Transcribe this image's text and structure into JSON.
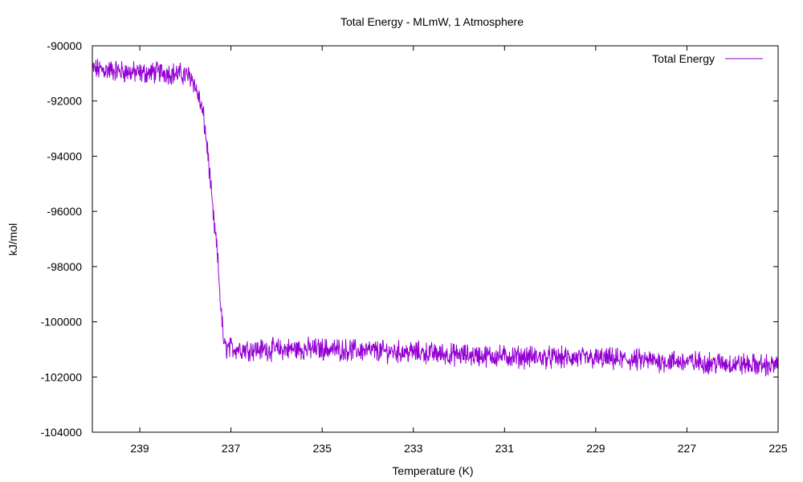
{
  "chart_data": {
    "type": "line",
    "title": "Total Energy - MLmW, 1 Atmosphere",
    "xlabel": "Temperature (K)",
    "ylabel": "kJ/mol",
    "x_reversed": true,
    "xlim": [
      240.04,
      225
    ],
    "ylim": [
      -104000,
      -90000
    ],
    "x_ticks": [
      239,
      237,
      235,
      233,
      231,
      229,
      227,
      225
    ],
    "y_ticks": [
      -90000,
      -92000,
      -94000,
      -96000,
      -98000,
      -100000,
      -102000,
      -104000
    ],
    "grid": false,
    "legend_position": "top-right",
    "series": [
      {
        "name": "Total Energy",
        "color": "#9400d3",
        "noise_amplitude": 320,
        "x": [
          240.04,
          239.5,
          239.0,
          238.5,
          238.0,
          237.85,
          237.7,
          237.6,
          237.5,
          237.4,
          237.3,
          237.22,
          237.15,
          237.1,
          237.0,
          236.5,
          236.0,
          235.0,
          234.0,
          233.0,
          232.0,
          231.0,
          230.0,
          229.0,
          228.0,
          227.0,
          226.0,
          225.0
        ],
        "y": [
          -90850,
          -90900,
          -91000,
          -90950,
          -91050,
          -91150,
          -91900,
          -92600,
          -94000,
          -96000,
          -97500,
          -99500,
          -100900,
          -100950,
          -100950,
          -101000,
          -101000,
          -100980,
          -101050,
          -101100,
          -101200,
          -101250,
          -101300,
          -101330,
          -101400,
          -101450,
          -101520,
          -101600
        ]
      }
    ]
  }
}
